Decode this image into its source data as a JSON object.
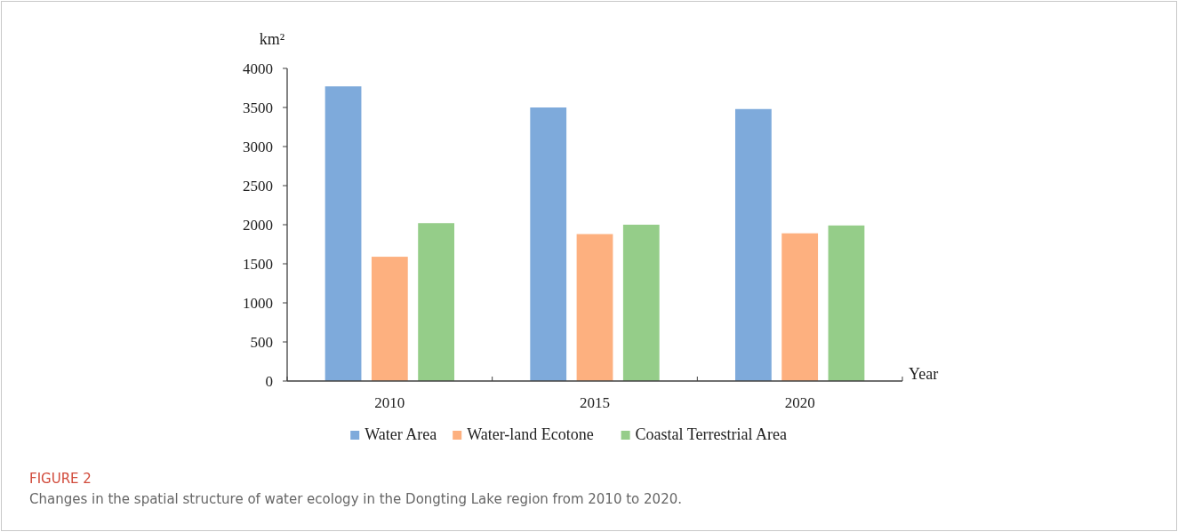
{
  "chart_data": {
    "type": "bar",
    "ylabel": "km²",
    "xlabel": "Year",
    "categories": [
      "2010",
      "2015",
      "2020"
    ],
    "series": [
      {
        "name": "Water Area",
        "color": "#7eaadb",
        "values": [
          3770,
          3500,
          3480
        ]
      },
      {
        "name": "Water-land Ecotone",
        "color": "#fdb07f",
        "values": [
          1590,
          1880,
          1890
        ]
      },
      {
        "name": "Coastal Terrestrial Area",
        "color": "#95cd89",
        "values": [
          2020,
          2000,
          1990
        ]
      }
    ],
    "ylim": [
      0,
      4000
    ],
    "yticks": [
      0,
      500,
      1000,
      1500,
      2000,
      2500,
      3000,
      3500,
      4000
    ],
    "grid": false,
    "legend": "bottom",
    "annotations": [
      "FIGURE 2",
      "Changes in the spatial structure of water ecology in the Dongting Lake region from 2010 to 2020."
    ]
  }
}
